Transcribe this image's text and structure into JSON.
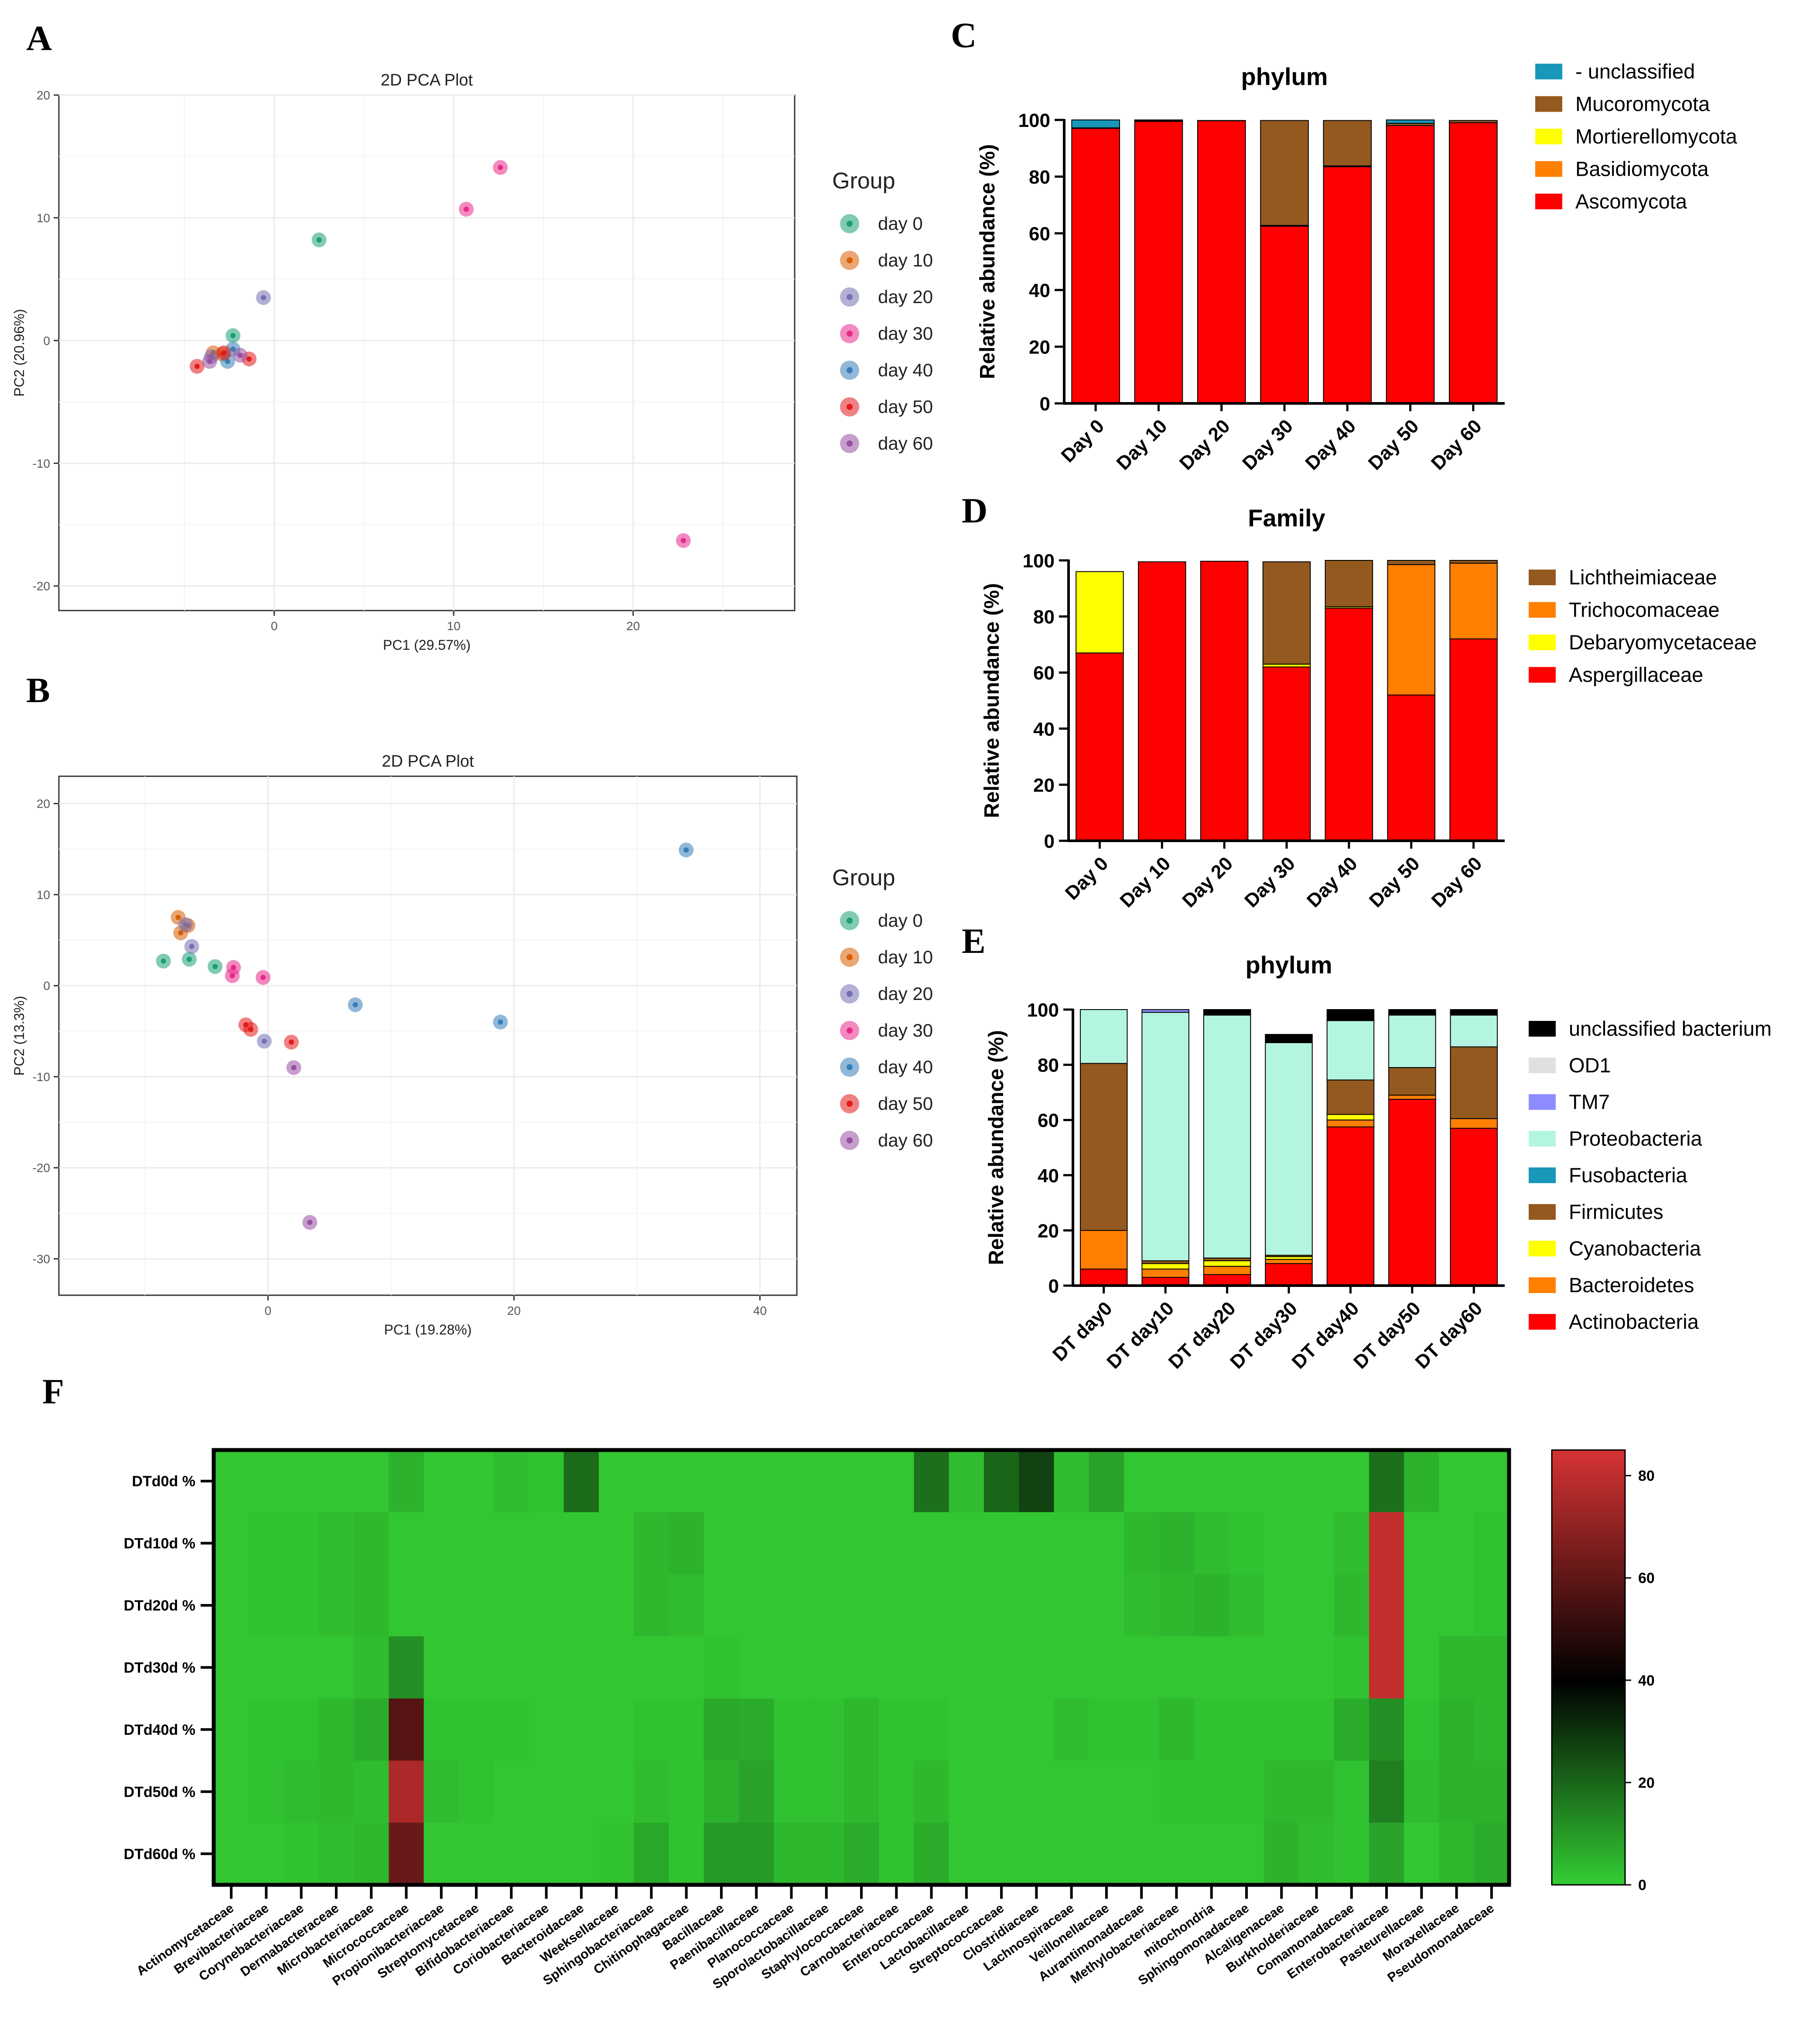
{
  "chart_data": [
    {
      "panel": "A",
      "type": "scatter",
      "title": "2D PCA Plot",
      "xlabel": "PC1 (29.57%)",
      "ylabel": "PC2 (20.96%)",
      "xlim": [
        -12,
        29
      ],
      "ylim": [
        -22,
        20
      ],
      "xticks": [
        0,
        10,
        20
      ],
      "yticks": [
        -20,
        -10,
        0,
        10,
        20
      ],
      "legend_title": "Group",
      "series": [
        {
          "name": "day 0",
          "color": "#1b9e77",
          "points": [
            [
              2.5,
              8.2
            ],
            [
              -2.3,
              0.4
            ]
          ]
        },
        {
          "name": "day 10",
          "color": "#d95f02",
          "points": [
            [
              -3.4,
              -1.0
            ],
            [
              -2.9,
              -1.1
            ]
          ]
        },
        {
          "name": "day 20",
          "color": "#7570b3",
          "points": [
            [
              -0.6,
              3.5
            ],
            [
              -3.5,
              -1.3
            ]
          ]
        },
        {
          "name": "day 30",
          "color": "#e7298a",
          "points": [
            [
              10.7,
              10.7
            ],
            [
              12.6,
              14.1
            ],
            [
              22.8,
              -16.3
            ]
          ]
        },
        {
          "name": "day 40",
          "color": "#377eb8",
          "points": [
            [
              -2.6,
              -1.7
            ],
            [
              -2.3,
              -0.7
            ]
          ]
        },
        {
          "name": "day 50",
          "color": "#e41a1c",
          "points": [
            [
              -4.3,
              -2.1
            ],
            [
              -1.4,
              -1.5
            ],
            [
              -2.8,
              -1.0
            ]
          ]
        },
        {
          "name": "day 60",
          "color": "#984ea3",
          "points": [
            [
              -1.9,
              -1.2
            ],
            [
              -3.6,
              -1.7
            ]
          ]
        }
      ]
    },
    {
      "panel": "B",
      "type": "scatter",
      "title": "2D PCA Plot",
      "xlabel": "PC1 (19.28%)",
      "ylabel": "PC2 (13.3%)",
      "xlim": [
        -17,
        43
      ],
      "ylim": [
        -34,
        23
      ],
      "xticks": [
        0,
        20,
        40
      ],
      "yticks": [
        -30,
        -20,
        -10,
        0,
        10,
        20
      ],
      "legend_title": "Group",
      "series": [
        {
          "name": "day 0",
          "color": "#1b9e77",
          "points": [
            [
              -8.5,
              2.7
            ],
            [
              -6.4,
              2.9
            ],
            [
              -4.3,
              2.1
            ]
          ]
        },
        {
          "name": "day 10",
          "color": "#d95f02",
          "points": [
            [
              -7.3,
              7.5
            ],
            [
              -7.1,
              5.8
            ],
            [
              -6.5,
              6.6
            ]
          ]
        },
        {
          "name": "day 20",
          "color": "#7570b3",
          "points": [
            [
              -6.7,
              6.7
            ],
            [
              -6.2,
              4.3
            ],
            [
              -0.3,
              -6.1
            ]
          ]
        },
        {
          "name": "day 30",
          "color": "#e7298a",
          "points": [
            [
              -2.8,
              2.0
            ],
            [
              -2.9,
              1.1
            ],
            [
              -0.4,
              0.9
            ]
          ]
        },
        {
          "name": "day 40",
          "color": "#377eb8",
          "points": [
            [
              34.0,
              14.9
            ],
            [
              7.1,
              -2.1
            ],
            [
              18.9,
              -4.0
            ]
          ]
        },
        {
          "name": "day 50",
          "color": "#e41a1c",
          "points": [
            [
              -1.8,
              -4.3
            ],
            [
              -1.4,
              -4.8
            ],
            [
              1.9,
              -6.2
            ]
          ]
        },
        {
          "name": "day 60",
          "color": "#984ea3",
          "points": [
            [
              2.1,
              -9.0
            ],
            [
              3.4,
              -26.0
            ]
          ]
        }
      ]
    },
    {
      "panel": "C",
      "type": "bar",
      "stacked": true,
      "title": "phylum",
      "ylabel": "Relative abundance (%)",
      "ylim": [
        0,
        100
      ],
      "yticks": [
        0,
        20,
        40,
        60,
        80,
        100
      ],
      "categories": [
        "Day 0",
        "Day 10",
        "Day 20",
        "Day 30",
        "Day 40",
        "Day 50",
        "Day 60"
      ],
      "series": [
        {
          "name": "Ascomycota",
          "color": "#ff0000",
          "values": [
            97.0,
            99.5,
            99.7,
            62.5,
            83.5,
            98.0,
            99.0
          ]
        },
        {
          "name": "Basidiomycota",
          "color": "#ff7f00",
          "values": [
            0,
            0,
            0,
            0,
            0,
            0,
            0
          ]
        },
        {
          "name": "Mortierellomycota",
          "color": "#ffff00",
          "values": [
            0,
            0,
            0,
            0.3,
            0.3,
            0,
            0
          ]
        },
        {
          "name": "Mucoromycota",
          "color": "#94591e",
          "values": [
            0.2,
            0.2,
            0.1,
            37.0,
            16.0,
            0.8,
            0.8
          ]
        },
        {
          "name": "- unclassified",
          "color": "#1897b9",
          "values": [
            2.8,
            0.3,
            0,
            0,
            0,
            1.2,
            0
          ]
        }
      ]
    },
    {
      "panel": "D",
      "type": "bar",
      "stacked": true,
      "title": "Family",
      "ylabel": "Relative abundance (%)",
      "ylim": [
        0,
        100
      ],
      "yticks": [
        0,
        20,
        40,
        60,
        80,
        100
      ],
      "categories": [
        "Day 0",
        "Day 10",
        "Day 20",
        "Day 30",
        "Day 40",
        "Day 50",
        "Day 60"
      ],
      "series": [
        {
          "name": "Aspergillaceae",
          "color": "#ff0000",
          "values": [
            67,
            99.5,
            99.7,
            62,
            83,
            52,
            72
          ]
        },
        {
          "name": "Debaryomycetaceae",
          "color": "#ffff00",
          "values": [
            29,
            0,
            0,
            1,
            0.5,
            0,
            0
          ]
        },
        {
          "name": "Trichocomaceae",
          "color": "#ff7f00",
          "values": [
            0,
            0,
            0,
            0,
            0,
            46.5,
            27
          ]
        },
        {
          "name": "Lichtheimiaceae",
          "color": "#94591e",
          "values": [
            0,
            0,
            0,
            36.5,
            16.5,
            1.5,
            1
          ]
        }
      ]
    },
    {
      "panel": "E",
      "type": "bar",
      "stacked": true,
      "title": "phylum",
      "ylabel": "Relative abundance (%)",
      "ylim": [
        0,
        100
      ],
      "yticks": [
        0,
        20,
        40,
        60,
        80,
        100
      ],
      "categories": [
        "DT day0",
        "DT day10",
        "DT day20",
        "DT day30",
        "DT day40",
        "DT day50",
        "DT day60"
      ],
      "series": [
        {
          "name": "Actinobacteria",
          "color": "#ff0000",
          "values": [
            6,
            3,
            4,
            8,
            57.5,
            67.5,
            57
          ]
        },
        {
          "name": "Bacteroidetes",
          "color": "#ff7f00",
          "values": [
            14,
            3,
            3,
            1.5,
            2.5,
            1.5,
            3.5
          ]
        },
        {
          "name": "Cyanobacteria",
          "color": "#ffff00",
          "values": [
            0,
            2,
            2,
            1,
            2,
            0,
            0
          ]
        },
        {
          "name": "Firmicutes",
          "color": "#94591e",
          "values": [
            60.5,
            1,
            1,
            0.5,
            12.5,
            10,
            26
          ]
        },
        {
          "name": "Fusobacteria",
          "color": "#1897b9",
          "values": [
            0,
            0,
            0,
            0,
            0,
            0,
            0
          ]
        },
        {
          "name": "Proteobacteria",
          "color": "#b3f5e0",
          "values": [
            19.5,
            90,
            88,
            77,
            21.5,
            19,
            11.5
          ]
        },
        {
          "name": "TM7",
          "color": "#8c8cff",
          "values": [
            0,
            1,
            0,
            0,
            0,
            0,
            0
          ]
        },
        {
          "name": "OD1",
          "color": "#e0e0e0",
          "values": [
            0,
            0,
            0,
            0,
            0,
            0,
            0
          ]
        },
        {
          "name": "unclassified bacterium",
          "color": "#000000",
          "values": [
            0,
            0,
            2,
            3,
            4,
            2,
            2
          ]
        }
      ]
    },
    {
      "panel": "F",
      "type": "heatmap",
      "colorbar": {
        "min": 0,
        "max": 85,
        "ticks": [
          0,
          20,
          40,
          60,
          80
        ],
        "colors": [
          "#33cc33",
          "#000000",
          "#d63333"
        ]
      },
      "rows": [
        "DTd0d %",
        "DTd10d %",
        "DTd20d %",
        "DTd30d %",
        "DTd40d %",
        "DTd50d %",
        "DTd60d %"
      ],
      "cols": [
        "Actinomycetaceae",
        "Brevibacteriaceae",
        "Corynebacteriaceae",
        "Dermabacteraceae",
        "Microbacteriaceae",
        "Micrococcaceae",
        "Propionibacteriaceae",
        "Streptomycetaceae",
        "Bifidobacteriaceae",
        "Coriobacteriaceae",
        "Bacteroidaceae",
        "Weeksellaceae",
        "Sphingobacteriaceae",
        "Chitinophagaceae",
        "Bacillaceae",
        "Paenibacillaceae",
        "Planococcaceae",
        "Sporolactobacillaceae",
        "Staphylococcaceae",
        "Carnobacteriaceae",
        "Enterococcaceae",
        "Lactobacillaceae",
        "Streptococcaceae",
        "Clostridiaceae",
        "Lachnospiraceae",
        "Veillonellaceae",
        "Aurantimonadaceae",
        "Methylobacteriaceae",
        "mitochondria",
        "Sphingomonadaceae",
        "Alcaligenaceae",
        "Burkholderiaceae",
        "Comamonadaceae",
        "Enterobacteriaceae",
        "Pasteurellaceae",
        "Moraxellaceae",
        "Pseudomonadaceae"
      ],
      "values": [
        [
          1,
          1,
          1,
          1,
          1,
          5,
          1,
          1,
          3,
          2,
          19,
          1,
          1,
          1,
          1,
          1,
          1,
          1,
          1,
          1,
          18,
          3,
          20,
          27,
          3,
          8,
          1,
          1,
          1,
          1,
          1,
          1,
          1,
          18,
          5,
          1,
          1
        ],
        [
          1,
          2,
          2,
          3,
          4,
          1,
          1,
          1,
          1,
          1,
          1,
          1,
          4,
          5,
          1,
          1,
          1,
          1,
          1,
          1,
          1,
          1,
          1,
          1,
          1,
          1,
          4,
          5,
          3,
          2,
          1,
          1,
          3,
          81,
          1,
          1,
          2
        ],
        [
          1,
          2,
          2,
          3,
          4,
          1,
          1,
          1,
          1,
          1,
          1,
          1,
          4,
          3,
          1,
          1,
          1,
          1,
          1,
          1,
          1,
          1,
          1,
          1,
          1,
          1,
          3,
          4,
          5,
          3,
          1,
          1,
          4,
          81,
          1,
          1,
          2
        ],
        [
          1,
          1,
          1,
          1,
          3,
          12,
          1,
          1,
          1,
          1,
          1,
          1,
          1,
          1,
          2,
          1,
          1,
          1,
          1,
          1,
          1,
          1,
          1,
          1,
          1,
          1,
          1,
          1,
          1,
          1,
          1,
          1,
          2,
          81,
          1,
          4,
          4
        ],
        [
          1,
          2,
          2,
          4,
          6,
          58,
          2,
          2,
          2,
          1,
          1,
          1,
          2,
          2,
          7,
          6,
          2,
          2,
          4,
          2,
          2,
          1,
          1,
          1,
          3,
          2,
          2,
          4,
          2,
          2,
          2,
          2,
          6,
          12,
          2,
          5,
          4
        ],
        [
          1,
          2,
          3,
          4,
          3,
          76,
          3,
          2,
          1,
          1,
          1,
          1,
          3,
          2,
          5,
          8,
          2,
          2,
          4,
          2,
          4,
          1,
          1,
          1,
          1,
          1,
          1,
          2,
          2,
          2,
          4,
          4,
          2,
          15,
          3,
          5,
          5
        ],
        [
          1,
          1,
          2,
          3,
          4,
          62,
          1,
          1,
          1,
          1,
          1,
          2,
          7,
          2,
          10,
          10,
          4,
          4,
          6,
          2,
          6,
          1,
          1,
          1,
          1,
          1,
          1,
          1,
          1,
          1,
          5,
          3,
          2,
          8,
          1,
          4,
          6
        ]
      ]
    }
  ],
  "panel_letters": {
    "a": "A",
    "b": "B",
    "c": "C",
    "d": "D",
    "e": "E",
    "f": "F"
  }
}
